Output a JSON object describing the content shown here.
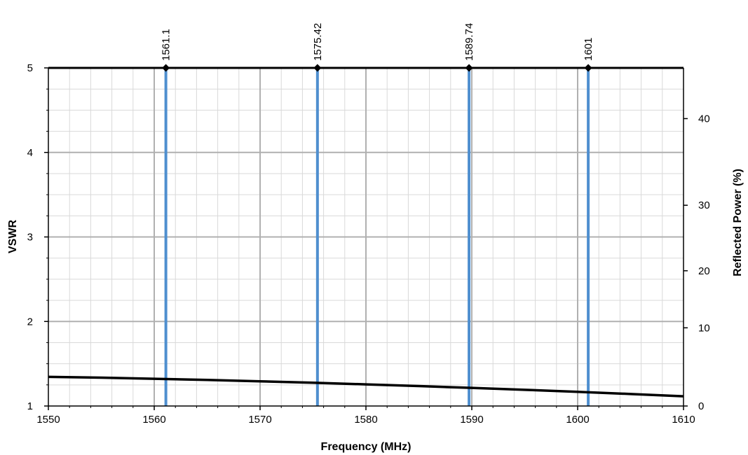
{
  "chart_data": {
    "type": "line",
    "title": "",
    "xlabel": "Frequency (MHz)",
    "ylabel": "VSWR",
    "y2label": "Reflected Power (%)",
    "xlim": [
      1550,
      1610
    ],
    "ylim": [
      1,
      5
    ],
    "x_ticks": [
      "1550",
      "1560",
      "1570",
      "1580",
      "1590",
      "1600",
      "1610"
    ],
    "y_ticks": [
      "1",
      "2",
      "3",
      "4",
      "5"
    ],
    "y2_ticks": [
      "0",
      "10",
      "20",
      "30",
      "40"
    ],
    "y2_tick_values": [
      1,
      1.925,
      2.6,
      3.375,
      4.4
    ],
    "grid": true,
    "markers": [
      {
        "label": "1561.1",
        "x": 1561.1
      },
      {
        "label": "1575.42",
        "x": 1575.42
      },
      {
        "label": "1589.74",
        "x": 1589.74
      },
      {
        "label": "1601",
        "x": 1601
      }
    ],
    "series": [
      {
        "x": [
          1550,
          1555,
          1560,
          1565,
          1570,
          1575,
          1580,
          1585,
          1590,
          1595,
          1600,
          1605,
          1610
        ],
        "values": [
          1.345,
          1.335,
          1.322,
          1.308,
          1.292,
          1.275,
          1.256,
          1.236,
          1.214,
          1.192,
          1.168,
          1.142,
          1.115
        ]
      }
    ],
    "colors": {
      "series": "#000000",
      "marker_line": "#4f8fcf",
      "grid_major": "#b0b0b0",
      "grid_minor": "#d9d9d9",
      "axis": "#000000"
    }
  }
}
